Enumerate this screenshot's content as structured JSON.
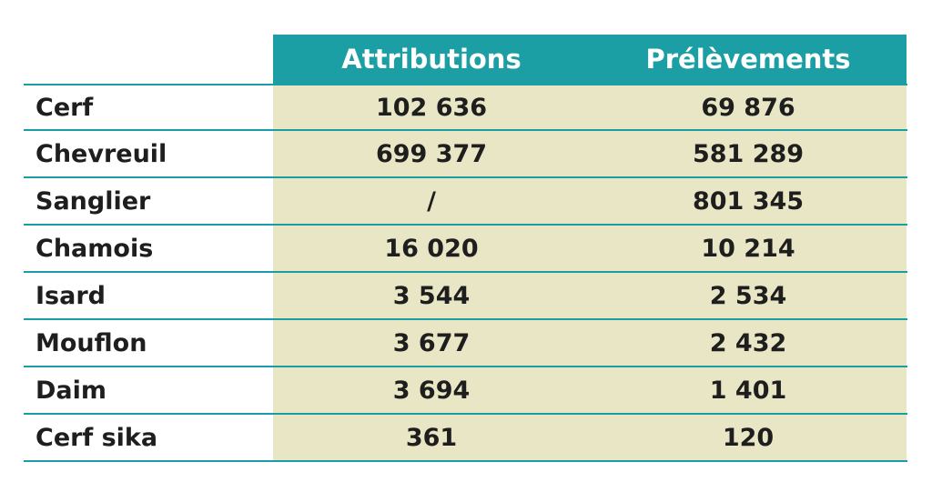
{
  "columns": [
    "Attributions",
    "Prélèvements"
  ],
  "rows": [
    {
      "species": "Cerf",
      "attributions": "102 636",
      "prelevements": "69 876"
    },
    {
      "species": "Chevreuil",
      "attributions": "699 377",
      "prelevements": "581 289"
    },
    {
      "species": "Sanglier",
      "attributions": "/",
      "prelevements": "801 345"
    },
    {
      "species": "Chamois",
      "attributions": "16 020",
      "prelevements": "10 214"
    },
    {
      "species": "Isard",
      "attributions": "3 544",
      "prelevements": "2 534"
    },
    {
      "species": "Mouflon",
      "attributions": "3 677",
      "prelevements": "2 432"
    },
    {
      "species": "Daim",
      "attributions": "3 694",
      "prelevements": "1 401"
    },
    {
      "species": "Cerf sika",
      "attributions": "361",
      "prelevements": "120"
    }
  ],
  "colors": {
    "header_bg": "#1b9ea4",
    "cell_bg": "#e9e6c5",
    "rule": "#1a9ea5"
  }
}
